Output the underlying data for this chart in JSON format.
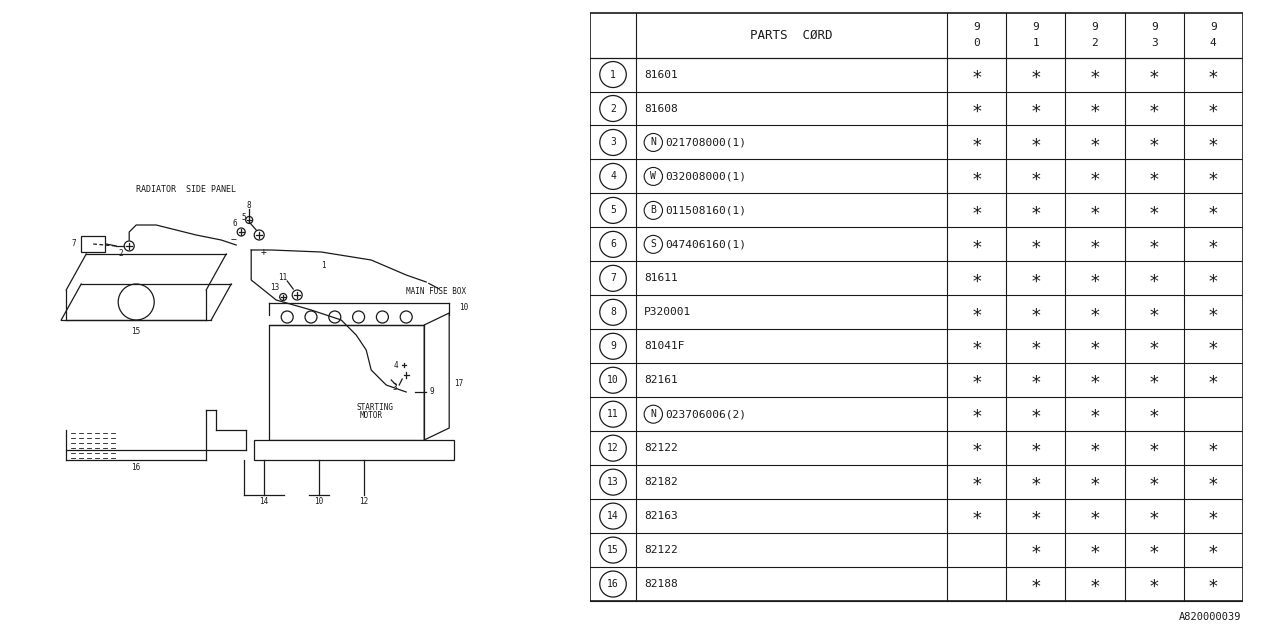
{
  "background_color": "#ffffff",
  "line_color": "#1a1a1a",
  "table": {
    "rows": [
      [
        "1",
        "81601",
        true,
        true,
        true,
        true,
        true
      ],
      [
        "2",
        "81608",
        true,
        true,
        true,
        true,
        true
      ],
      [
        "3",
        "N|021708000(1)",
        true,
        true,
        true,
        true,
        true
      ],
      [
        "4",
        "W|032008000(1)",
        true,
        true,
        true,
        true,
        true
      ],
      [
        "5",
        "B|011508160(1)",
        true,
        true,
        true,
        true,
        true
      ],
      [
        "6",
        "S|047406160(1)",
        true,
        true,
        true,
        true,
        true
      ],
      [
        "7",
        "81611",
        true,
        true,
        true,
        true,
        true
      ],
      [
        "8",
        "P320001",
        true,
        true,
        true,
        true,
        true
      ],
      [
        "9",
        "81041F",
        true,
        true,
        true,
        true,
        true
      ],
      [
        "10",
        "82161",
        true,
        true,
        true,
        true,
        true
      ],
      [
        "11",
        "N|023706006(2)",
        true,
        true,
        true,
        true,
        false
      ],
      [
        "12",
        "82122",
        true,
        true,
        true,
        true,
        true
      ],
      [
        "13",
        "82182",
        true,
        true,
        true,
        true,
        true
      ],
      [
        "14",
        "82163",
        true,
        true,
        true,
        true,
        true
      ],
      [
        "15",
        "82122",
        false,
        true,
        true,
        true,
        true
      ],
      [
        "16",
        "82188",
        false,
        true,
        true,
        true,
        true
      ]
    ],
    "special_prefix": [
      "3",
      "4",
      "5",
      "6",
      "11"
    ]
  },
  "ref_code": "A820000039"
}
